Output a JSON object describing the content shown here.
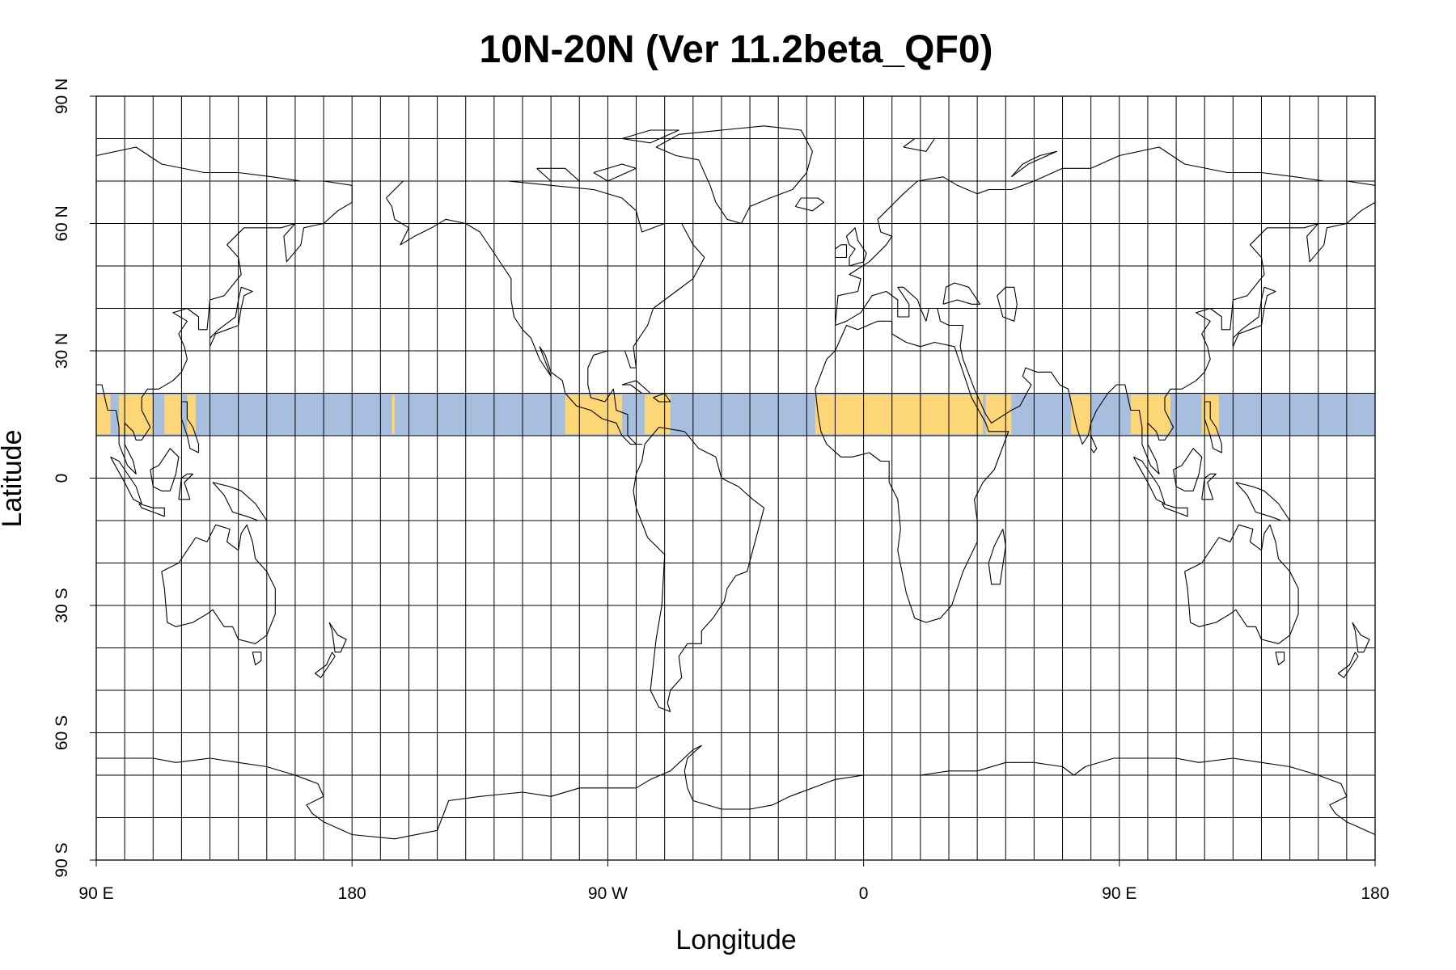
{
  "title": "10N-20N (Ver 11.2beta_QF0)",
  "x_axis_label": "Longitude",
  "y_axis_label": "Latitude",
  "x_ticks": [
    {
      "lon": -270,
      "label": "90 E"
    },
    {
      "lon": -180,
      "label": "180"
    },
    {
      "lon": -90,
      "label": "90 W"
    },
    {
      "lon": 0,
      "label": "0"
    },
    {
      "lon": 90,
      "label": "90 E"
    },
    {
      "lon": 180,
      "label": "180"
    }
  ],
  "y_ticks": [
    {
      "lat": 90,
      "label": "90 N"
    },
    {
      "lat": 60,
      "label": "60 N"
    },
    {
      "lat": 30,
      "label": "30 N"
    },
    {
      "lat": 0,
      "label": "0"
    },
    {
      "lat": -30,
      "label": "30 S"
    },
    {
      "lat": -60,
      "label": "60 S"
    },
    {
      "lat": -90,
      "label": "90 S"
    }
  ],
  "map": {
    "lon_range": [
      -270,
      180
    ],
    "lat_range": [
      -90,
      90
    ],
    "grid_spacing_lon": 10,
    "grid_spacing_lat": 10
  },
  "highlight_band": {
    "lat_range": [
      10,
      20
    ],
    "ocean_color": "#a7bedf",
    "land_color": "#fdd777"
  },
  "colors": {
    "grid": "#000000",
    "coastline": "#000000",
    "background": "#ffffff"
  }
}
